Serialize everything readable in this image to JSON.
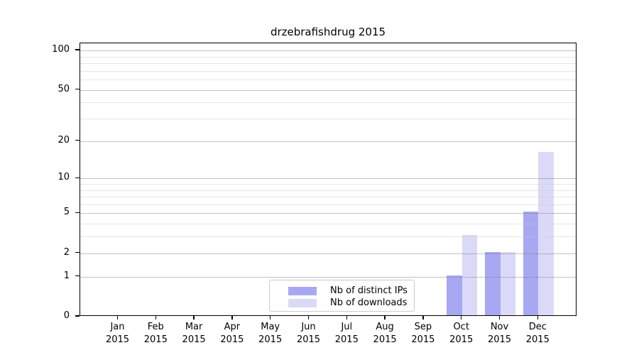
{
  "title": "drzebrafishdrug 2015",
  "colors": {
    "ips_bar": "#a8a8f2",
    "downloads_bar": "#dadaf8",
    "grid_major": "#c3c3c3",
    "grid_minor": "#e7e7e7",
    "axis": "#000000",
    "legend_border": "#cccccc"
  },
  "legend": {
    "items": [
      {
        "label": "Nb of distinct IPs",
        "series": "ips"
      },
      {
        "label": "Nb of downloads",
        "series": "downloads"
      }
    ],
    "position": "lower center"
  },
  "chart_data": {
    "type": "bar",
    "title": "drzebrafishdrug 2015",
    "categories": [
      "Jan",
      "Feb",
      "Mar",
      "Apr",
      "May",
      "Jun",
      "Jul",
      "Aug",
      "Sep",
      "Oct",
      "Nov",
      "Dec"
    ],
    "x_sublabel": "2015",
    "series": [
      {
        "name": "Nb of distinct IPs",
        "color": "#a8a8f2",
        "values": [
          0,
          0,
          0,
          0,
          0,
          0,
          0,
          0,
          0,
          1,
          2,
          5
        ]
      },
      {
        "name": "Nb of downloads",
        "color": "#dadaf8",
        "values": [
          0,
          0,
          0,
          0,
          0,
          0,
          0,
          0,
          0,
          3,
          2,
          16
        ]
      }
    ],
    "y_scale": "log1p",
    "y_ticks": [
      0,
      1,
      2,
      5,
      10,
      20,
      50,
      100
    ],
    "y_minor_ticks": [
      3,
      4,
      6,
      7,
      8,
      9,
      30,
      40,
      60,
      70,
      80,
      90
    ],
    "ylim": [
      0,
      113.2
    ],
    "xlabel": "",
    "ylabel": "",
    "grid": true,
    "legend_position": "lower center"
  }
}
